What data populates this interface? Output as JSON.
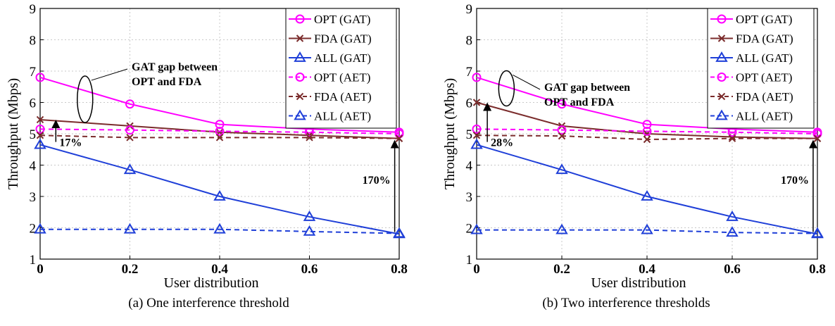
{
  "chart_data": [
    {
      "type": "line",
      "caption": "(a) One interference threshold",
      "xlabel": "User distribution",
      "ylabel": "Throughput (Mbps)",
      "xlim": [
        0,
        0.8
      ],
      "ylim": [
        1,
        9
      ],
      "xticks": [
        0,
        0.2,
        0.4,
        0.6,
        0.8
      ],
      "xtick_labels": [
        "0",
        "0.2",
        "0.4",
        "0.6",
        "0.8"
      ],
      "yticks": [
        1,
        2,
        3,
        4,
        5,
        6,
        7,
        8,
        9
      ],
      "ytick_labels": [
        "1",
        "2",
        "3",
        "4",
        "5",
        "6",
        "7",
        "8",
        "9"
      ],
      "grid": true,
      "legend_position": "top-right",
      "x": [
        0,
        0.2,
        0.4,
        0.6,
        0.8
      ],
      "series": [
        {
          "name": "OPT (GAT)",
          "values": [
            6.8,
            5.95,
            5.3,
            5.15,
            5.05
          ],
          "color": "#ff00ff",
          "marker": "circle",
          "dash": "solid"
        },
        {
          "name": "FDA (GAT)",
          "values": [
            5.45,
            5.25,
            5.05,
            4.95,
            4.85
          ],
          "color": "#7b2c2c",
          "marker": "x",
          "dash": "solid"
        },
        {
          "name": "ALL (GAT)",
          "values": [
            4.65,
            3.85,
            3.0,
            2.35,
            1.8
          ],
          "color": "#1f3fd8",
          "marker": "triangle",
          "dash": "solid"
        },
        {
          "name": "OPT (AET)",
          "values": [
            5.15,
            5.12,
            5.08,
            5.05,
            5.0
          ],
          "color": "#ff00ff",
          "marker": "circle",
          "dash": "dashed"
        },
        {
          "name": "FDA (AET)",
          "values": [
            4.95,
            4.88,
            4.88,
            4.88,
            4.85
          ],
          "color": "#7b2c2c",
          "marker": "x",
          "dash": "dashed"
        },
        {
          "name": "ALL (AET)",
          "values": [
            1.95,
            1.95,
            1.95,
            1.88,
            1.82
          ],
          "color": "#1f3fd8",
          "marker": "triangle",
          "dash": "dashed"
        }
      ],
      "annotations": {
        "gap_label_line1": "GAT gap between",
        "gap_label_line2": "OPT and FDA",
        "left_pct": "17%",
        "right_pct": "170%"
      }
    },
    {
      "type": "line",
      "caption": "(b) Two interference thresholds",
      "xlabel": "User distribution",
      "ylabel": "Throughput (Mbps)",
      "xlim": [
        0,
        0.8
      ],
      "ylim": [
        1,
        9
      ],
      "xticks": [
        0,
        0.2,
        0.4,
        0.6,
        0.8
      ],
      "xtick_labels": [
        "0",
        "0.2",
        "0.4",
        "0.6",
        "0.8"
      ],
      "yticks": [
        1,
        2,
        3,
        4,
        5,
        6,
        7,
        8,
        9
      ],
      "ytick_labels": [
        "1",
        "2",
        "3",
        "4",
        "5",
        "6",
        "7",
        "8",
        "9"
      ],
      "grid": true,
      "legend_position": "top-right",
      "x": [
        0,
        0.2,
        0.4,
        0.6,
        0.8
      ],
      "series": [
        {
          "name": "OPT (GAT)",
          "values": [
            6.8,
            5.95,
            5.3,
            5.15,
            5.05
          ],
          "color": "#ff00ff",
          "marker": "circle",
          "dash": "solid"
        },
        {
          "name": "FDA (GAT)",
          "values": [
            6.0,
            5.25,
            5.0,
            4.9,
            4.85
          ],
          "color": "#7b2c2c",
          "marker": "x",
          "dash": "solid"
        },
        {
          "name": "ALL (GAT)",
          "values": [
            4.65,
            3.85,
            3.0,
            2.35,
            1.8
          ],
          "color": "#1f3fd8",
          "marker": "triangle",
          "dash": "solid"
        },
        {
          "name": "OPT (AET)",
          "values": [
            5.15,
            5.12,
            5.08,
            5.05,
            5.0
          ],
          "color": "#ff00ff",
          "marker": "circle",
          "dash": "dashed"
        },
        {
          "name": "FDA (AET)",
          "values": [
            4.95,
            4.93,
            4.82,
            4.85,
            4.85
          ],
          "color": "#7b2c2c",
          "marker": "x",
          "dash": "dashed"
        },
        {
          "name": "ALL (AET)",
          "values": [
            1.93,
            1.93,
            1.93,
            1.85,
            1.82
          ],
          "color": "#1f3fd8",
          "marker": "triangle",
          "dash": "dashed"
        }
      ],
      "annotations": {
        "gap_label_line1": "GAT gap between",
        "gap_label_line2": "OPT and FDA",
        "left_pct": "28%",
        "right_pct": "170%"
      }
    }
  ]
}
